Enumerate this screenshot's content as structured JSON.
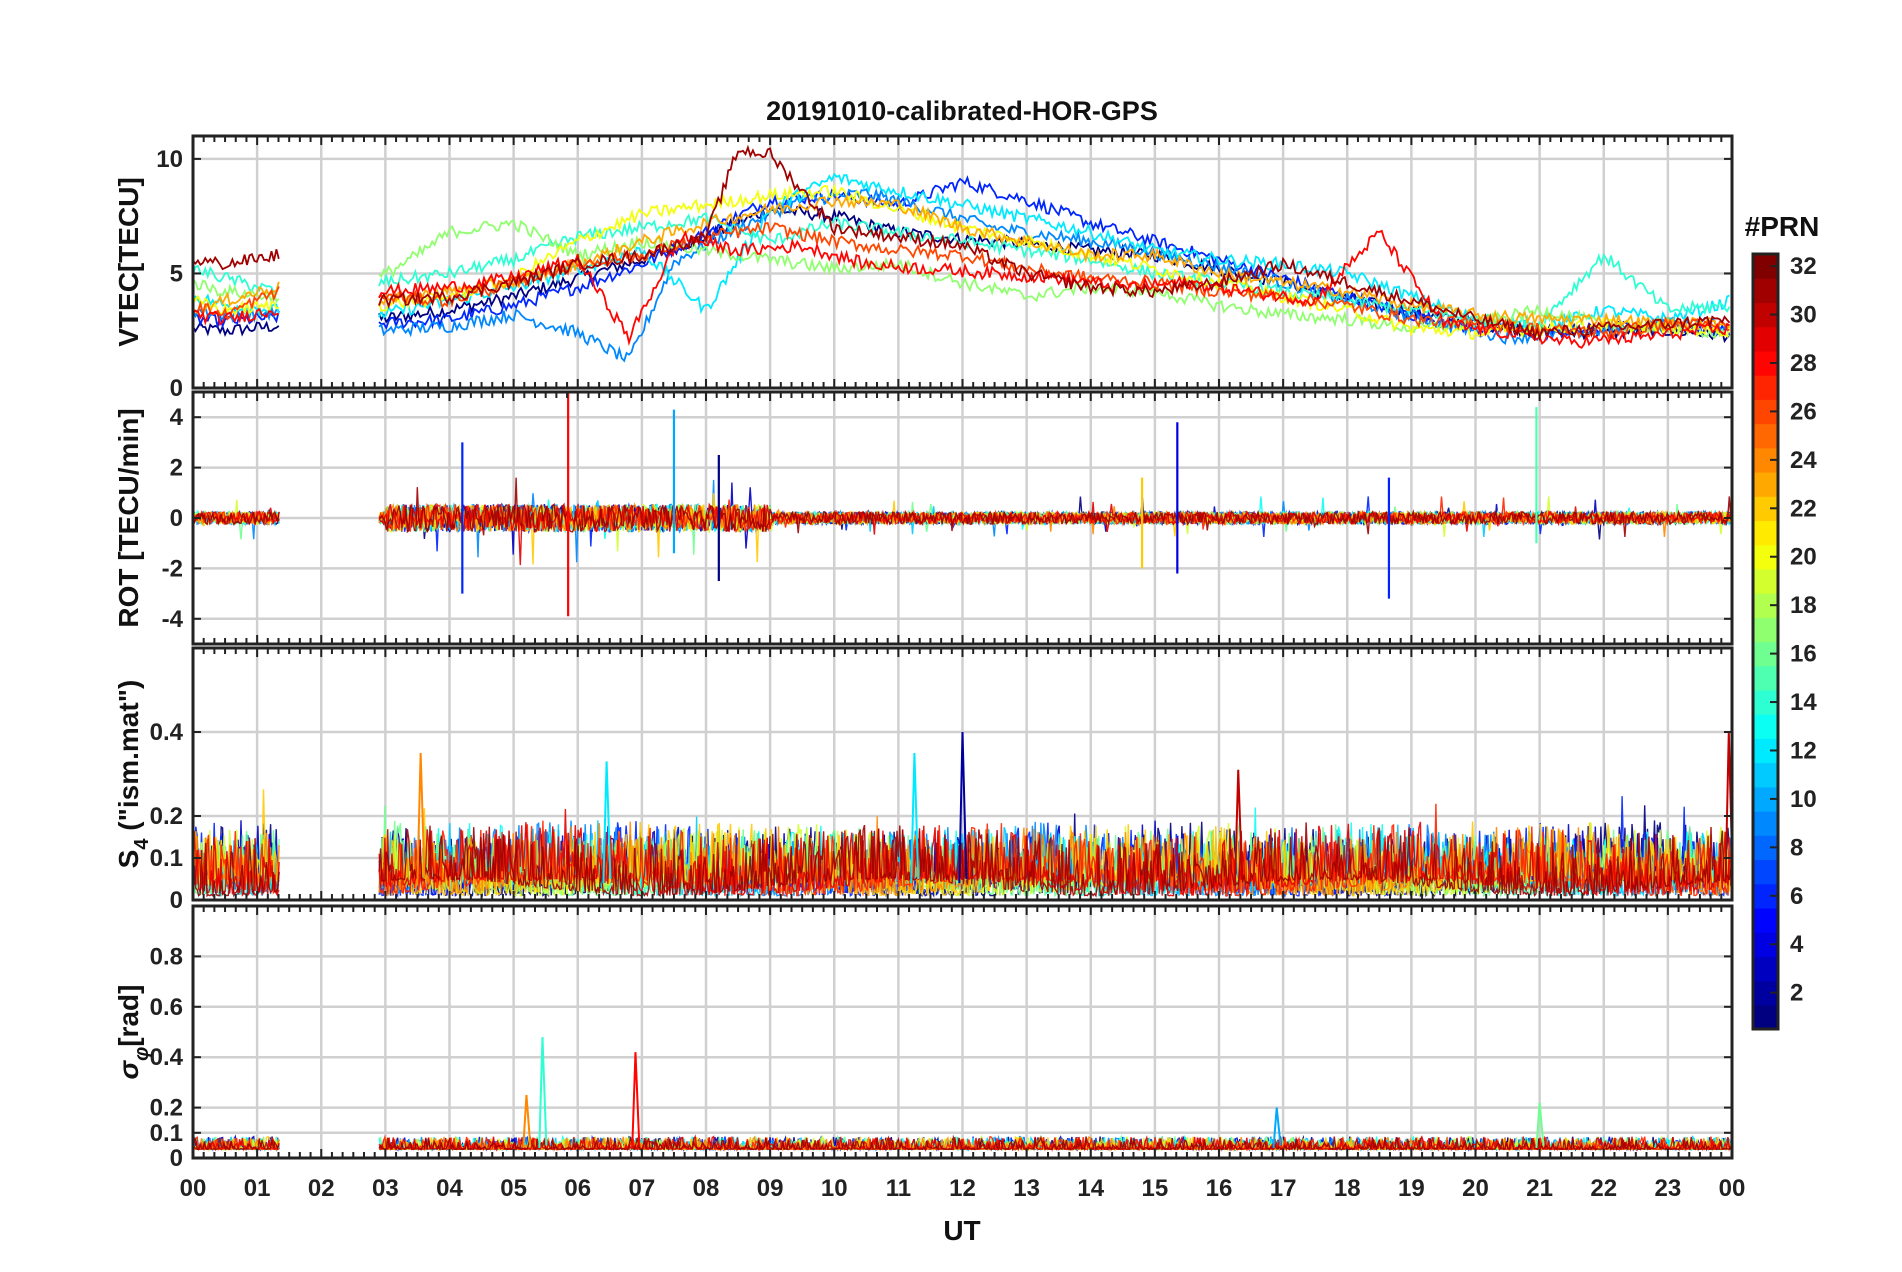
{
  "chart_data": {
    "type": "line",
    "title": "20191010-calibrated-HOR-GPS",
    "xlabel": "UT",
    "x_ticks": [
      "00",
      "01",
      "02",
      "03",
      "04",
      "05",
      "06",
      "07",
      "08",
      "09",
      "10",
      "11",
      "12",
      "13",
      "14",
      "15",
      "16",
      "17",
      "18",
      "19",
      "20",
      "21",
      "22",
      "23",
      "00"
    ],
    "x_range_hours": [
      0,
      24
    ],
    "data_gap_hours": [
      1.35,
      2.9
    ],
    "colorbar": {
      "title": "#PRN",
      "range": [
        1,
        32
      ],
      "ticks": [
        "2",
        "4",
        "6",
        "8",
        "10",
        "12",
        "14",
        "16",
        "18",
        "20",
        "22",
        "24",
        "26",
        "28",
        "30",
        "32"
      ],
      "colormap": "jet"
    },
    "panels": [
      {
        "id": "vtec",
        "ylabel": "VTEC[TECU]",
        "ylim": [
          0,
          11
        ],
        "yticks": [
          "0",
          "5",
          "10"
        ],
        "series": [
          {
            "name": "PRN 1",
            "x": [
              0,
              0.5,
              1.3,
              2.9,
              4,
              5,
              6,
              7,
              8,
              9,
              10,
              11,
              12,
              13,
              14,
              15,
              16,
              17,
              18,
              19,
              20,
              21,
              22,
              23,
              24
            ],
            "values": [
              2.6,
              2.5,
              2.7,
              3.0,
              3.4,
              4.0,
              4.8,
              5.6,
              6.6,
              7.8,
              7.5,
              6.8,
              6.5,
              6.3,
              6.0,
              5.8,
              5.2,
              4.6,
              3.9,
              3.3,
              2.8,
              2.5,
              2.4,
              2.5,
              2.3
            ]
          },
          {
            "name": "PRN 6",
            "x": [
              0,
              0.5,
              1.3,
              2.9,
              4,
              5,
              6,
              7,
              8,
              9,
              10,
              11,
              12,
              13,
              14,
              15,
              16,
              17,
              18,
              19,
              20,
              21,
              22,
              23,
              24
            ],
            "values": [
              3.0,
              2.9,
              3.1,
              2.8,
              3.0,
              3.6,
              4.4,
              5.4,
              6.8,
              8.2,
              8.4,
              8.0,
              9.0,
              8.2,
              7.2,
              6.4,
              5.6,
              4.8,
              4.0,
              3.2,
              2.6,
              2.4,
              2.6,
              2.8,
              2.4
            ]
          },
          {
            "name": "PRN 9",
            "x": [
              0,
              0.5,
              1.3,
              2.9,
              4,
              5,
              6,
              6.8,
              7.5,
              8.5,
              9.5,
              10.5,
              11.5,
              12.5,
              13.5,
              14.5,
              15.5,
              16.5,
              17.5,
              18.5,
              19.5,
              20.5,
              21.5,
              22.5,
              23.5,
              24
            ],
            "values": [
              3.4,
              3.2,
              3.3,
              2.5,
              2.7,
              3.2,
              2.4,
              1.2,
              5.5,
              7.0,
              8.2,
              8.5,
              7.8,
              7.0,
              6.6,
              6.2,
              5.6,
              5.0,
              4.2,
              3.5,
              2.8,
              2.2,
              2.4,
              2.7,
              2.9,
              2.6
            ]
          },
          {
            "name": "PRN 12",
            "x": [
              0,
              0.5,
              1.3,
              2.9,
              4,
              5,
              6,
              7,
              8,
              9,
              10,
              11,
              12,
              13,
              14,
              15,
              16,
              17,
              18,
              19,
              20,
              21,
              22,
              23,
              24
            ],
            "values": [
              4.0,
              3.6,
              3.4,
              3.2,
              3.8,
              4.4,
              5.2,
              6.0,
              3.4,
              7.8,
              9.2,
              8.6,
              8.0,
              7.4,
              6.8,
              6.0,
              5.6,
              5.4,
              5.0,
              4.0,
              3.0,
              2.6,
              3.4,
              3.0,
              3.8
            ]
          },
          {
            "name": "PRN 14",
            "x": [
              0,
              0.5,
              1.3,
              2.9,
              4,
              5,
              6,
              7,
              8,
              9,
              10,
              11,
              12,
              13,
              14,
              15,
              16,
              17,
              18,
              19,
              20,
              21,
              22,
              23,
              24
            ],
            "values": [
              5.2,
              4.8,
              4.2,
              4.6,
              5.0,
              5.6,
              6.6,
              7.0,
              7.4,
              6.4,
              7.2,
              6.8,
              6.4,
              6.0,
              5.6,
              5.0,
              4.6,
              4.2,
              3.8,
              3.4,
              3.0,
              2.8,
              5.8,
              3.4,
              3.6
            ]
          },
          {
            "name": "PRN 17",
            "x": [
              0,
              0.5,
              1.3,
              2.9,
              3.5,
              4,
              5,
              6,
              7,
              8,
              9,
              10,
              11,
              12,
              13,
              14,
              15,
              16,
              17,
              18,
              19,
              20,
              21,
              22,
              23,
              24
            ],
            "values": [
              4.6,
              4.2,
              4.0,
              4.8,
              5.8,
              6.8,
              7.2,
              5.8,
              6.4,
              6.0,
              5.6,
              5.2,
              5.4,
              4.6,
              4.0,
              4.4,
              4.2,
              3.6,
              3.2,
              3.0,
              2.6,
              2.8,
              3.4,
              2.8,
              2.6,
              2.4
            ]
          },
          {
            "name": "PRN 20",
            "x": [
              0,
              0.5,
              1.3,
              2.9,
              4,
              5,
              6,
              7,
              8,
              9,
              10,
              11,
              12,
              13,
              14,
              15,
              16,
              17,
              18,
              19,
              20,
              21,
              22,
              23,
              24
            ],
            "values": [
              3.8,
              3.4,
              3.6,
              3.6,
              4.0,
              4.8,
              6.4,
              7.6,
              8.0,
              8.4,
              8.6,
              7.8,
              7.0,
              6.4,
              5.8,
              5.2,
              4.6,
              4.0,
              3.4,
              2.6,
              2.4,
              2.6,
              2.8,
              2.6,
              2.5
            ]
          },
          {
            "name": "PRN 23",
            "x": [
              0,
              0.5,
              1.3,
              2.9,
              4,
              5,
              6,
              7,
              8,
              9,
              10,
              11,
              12,
              13,
              14,
              15,
              16,
              17,
              18,
              19,
              20,
              21,
              22,
              23,
              24
            ],
            "values": [
              3.4,
              3.8,
              4.4,
              3.8,
              4.2,
              4.6,
              5.4,
              6.4,
              7.2,
              7.8,
              8.2,
              8.0,
              7.0,
              6.4,
              5.8,
              5.8,
              5.0,
              4.6,
              4.2,
              3.6,
              3.2,
              3.0,
              3.0,
              2.8,
              2.8
            ]
          },
          {
            "name": "PRN 26",
            "x": [
              0,
              0.5,
              1.3,
              2.9,
              4,
              5,
              6,
              7,
              8,
              9,
              10,
              11,
              12,
              13,
              14,
              15,
              16,
              17,
              18,
              19,
              20,
              21,
              22,
              23,
              24
            ],
            "values": [
              3.6,
              3.2,
              4.2,
              4.0,
              3.8,
              4.6,
              5.4,
              5.8,
              6.6,
              7.0,
              6.4,
              6.0,
              5.8,
              5.2,
              4.8,
              4.6,
              4.2,
              4.0,
              3.6,
              3.0,
              2.8,
              2.6,
              2.4,
              2.8,
              2.7
            ]
          },
          {
            "name": "PRN 28",
            "x": [
              0,
              0.5,
              1.3,
              2.9,
              4,
              5,
              6,
              6.8,
              7.6,
              8.5,
              9.5,
              10.5,
              11.5,
              12.5,
              13.5,
              14.5,
              15.5,
              16.5,
              17.5,
              18.5,
              19.5,
              20.5,
              21.5,
              22.5,
              23.5,
              24
            ],
            "values": [
              3.2,
              3.0,
              3.4,
              4.2,
              4.4,
              4.8,
              5.6,
              2.2,
              6.6,
              6.0,
              6.2,
              5.4,
              5.2,
              5.0,
              4.8,
              4.4,
              4.6,
              4.2,
              3.8,
              6.8,
              2.8,
              2.4,
              2.0,
              2.2,
              2.5,
              2.6
            ]
          },
          {
            "name": "PRN 31",
            "x": [
              0,
              0.5,
              1.3,
              2.9,
              4,
              5,
              6,
              7,
              8,
              8.5,
              9,
              10,
              11,
              12,
              13,
              14,
              15,
              16,
              17,
              18,
              19,
              20,
              21,
              22,
              23,
              24
            ],
            "values": [
              5.6,
              5.4,
              5.8,
              3.8,
              4.0,
              4.6,
              5.4,
              5.8,
              6.6,
              10.4,
              10.2,
              7.0,
              6.6,
              6.2,
              5.0,
              4.4,
              4.2,
              4.6,
              5.4,
              4.6,
              3.8,
              3.0,
              2.4,
              2.6,
              2.8,
              3.0
            ]
          }
        ]
      },
      {
        "id": "rot",
        "ylabel": "ROT [TECU/min]",
        "ylim": [
          -5,
          5
        ],
        "yticks": [
          "-4",
          "-2",
          "0",
          "2",
          "4"
        ],
        "spikes": [
          {
            "name": "PRN 6",
            "x": 4.2,
            "values": [
              3.0,
              -3.0
            ]
          },
          {
            "name": "PRN 28",
            "x": 5.85,
            "values": [
              5.0,
              -3.9
            ]
          },
          {
            "name": "PRN 10",
            "x": 7.5,
            "values": [
              4.3,
              -1.4
            ]
          },
          {
            "name": "PRN 1",
            "x": 8.2,
            "values": [
              2.5,
              -2.5
            ]
          },
          {
            "name": "PRN 4",
            "x": 15.35,
            "values": [
              3.8,
              -2.2
            ]
          },
          {
            "name": "PRN 22",
            "x": 14.8,
            "values": [
              1.6,
              -2.0
            ]
          },
          {
            "name": "PRN 6",
            "x": 18.65,
            "values": [
              1.6,
              -3.2
            ]
          },
          {
            "name": "PRN 15",
            "x": 20.95,
            "values": [
              4.4,
              -1.0
            ]
          }
        ]
      },
      {
        "id": "s4",
        "ylabel": "S4 (\"ism.mat\")",
        "ylabel_main": "S",
        "ylabel_sub": "4",
        "ylabel_rest": " (\"ism.mat\")",
        "ylim": [
          0,
          0.6
        ],
        "yticks": [
          "0",
          "0.1",
          "0.2",
          "0.4"
        ],
        "ytick_values": [
          0,
          0.1,
          0.2,
          0.4
        ],
        "peaks": [
          {
            "name": "PRN 24",
            "x": 3.55,
            "value": 0.35
          },
          {
            "name": "PRN 12",
            "x": 6.45,
            "value": 0.33
          },
          {
            "name": "PRN 12",
            "x": 11.25,
            "value": 0.35
          },
          {
            "name": "PRN 2",
            "x": 12.0,
            "value": 0.4
          },
          {
            "name": "PRN 30",
            "x": 16.3,
            "value": 0.31
          },
          {
            "name": "PRN 30",
            "x": 23.95,
            "value": 0.4
          }
        ]
      },
      {
        "id": "sigma_phi",
        "ylabel": "σφ[rad]",
        "ylabel_main": "σ",
        "ylabel_sub": "φ",
        "ylabel_rest": "[rad]",
        "ylim": [
          0,
          1.0
        ],
        "yticks": [
          "0",
          "0.1",
          "0.2",
          "0.4",
          "0.6",
          "0.8"
        ],
        "ytick_values": [
          0,
          0.1,
          0.2,
          0.4,
          0.6,
          0.8
        ],
        "peaks": [
          {
            "name": "PRN 14",
            "x": 5.45,
            "value": 0.48
          },
          {
            "name": "PRN 28",
            "x": 6.9,
            "value": 0.42
          },
          {
            "name": "PRN 24",
            "x": 5.2,
            "value": 0.25
          },
          {
            "name": "PRN 10",
            "x": 16.9,
            "value": 0.2
          },
          {
            "name": "PRN 16",
            "x": 21.0,
            "value": 0.22
          }
        ]
      }
    ]
  }
}
